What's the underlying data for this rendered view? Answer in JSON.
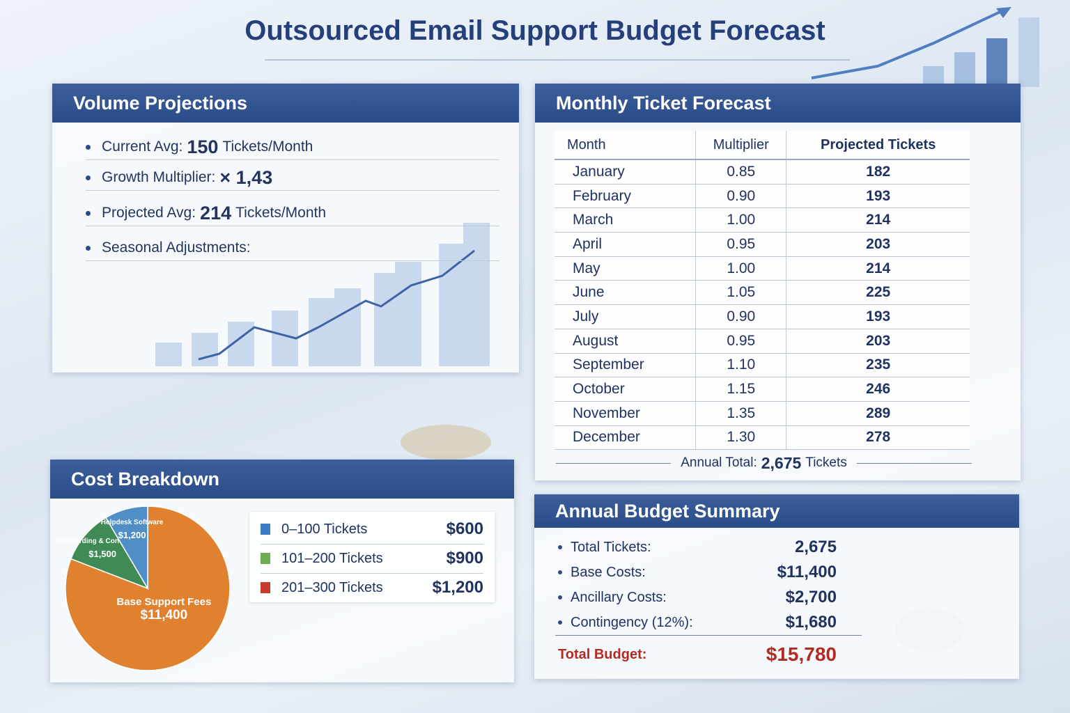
{
  "title": "Outsourced Email Support Budget Forecast",
  "volume": {
    "heading": "Volume Projections",
    "items": [
      {
        "label": "Current Avg:",
        "value": "150",
        "unit": "Tickets/Month"
      },
      {
        "label": "Growth Multiplier:",
        "value": "× 1,43"
      },
      {
        "label": "Projected Avg:",
        "value": "214",
        "unit": "Tickets/Month"
      },
      {
        "label": "Seasonal Adjustments:"
      }
    ]
  },
  "forecast": {
    "heading": "Monthly Ticket Forecast",
    "columns": [
      "Month",
      "Multiplier",
      "Projected Tickets"
    ],
    "rows": [
      [
        "January",
        "0.85",
        "182"
      ],
      [
        "February",
        "0.90",
        "193"
      ],
      [
        "March",
        "1.00",
        "214"
      ],
      [
        "April",
        "0.95",
        "203"
      ],
      [
        "May",
        "1.00",
        "214"
      ],
      [
        "June",
        "1.05",
        "225"
      ],
      [
        "July",
        "0.90",
        "193"
      ],
      [
        "August",
        "0.95",
        "203"
      ],
      [
        "September",
        "1.10",
        "235"
      ],
      [
        "October",
        "1.15",
        "246"
      ],
      [
        "November",
        "1.35",
        "289"
      ],
      [
        "December",
        "1.30",
        "278"
      ]
    ],
    "total": {
      "label": "Annual Total:",
      "value": "2,675",
      "unit": "Tickets"
    }
  },
  "chart_data": {
    "type": "pie",
    "title": "Cost Breakdown",
    "categories": [
      "Base Support Fees",
      "Onboarding & Contingency",
      "Helpdesk Software"
    ],
    "values": [
      11400,
      1500,
      1200
    ],
    "value_labels": [
      "$11,400",
      "$1,500",
      "$1,200"
    ],
    "colors": [
      "#e0812f",
      "#3f8a55",
      "#4f8fc6"
    ]
  },
  "tiers": [
    {
      "label": "0–100 Tickets",
      "price": "$600",
      "color": "#3d7cc4"
    },
    {
      "label": "101–200 Tickets",
      "price": "$900",
      "color": "#6cae4f"
    },
    {
      "label": "201–300 Tickets",
      "price": "$1,200",
      "color": "#c83a2c"
    }
  ],
  "budget": {
    "heading": "Annual Budget Summary",
    "items": [
      {
        "label": "Total Tickets:",
        "value": "2,675"
      },
      {
        "label": "Base Costs:",
        "value": "$11,400"
      },
      {
        "label": "Ancillary Costs:",
        "value": "$2,700"
      },
      {
        "label": "Contingency (12%):",
        "value": "$1,680"
      }
    ],
    "total": {
      "label": "Total Budget:",
      "value": "$15,780"
    }
  }
}
